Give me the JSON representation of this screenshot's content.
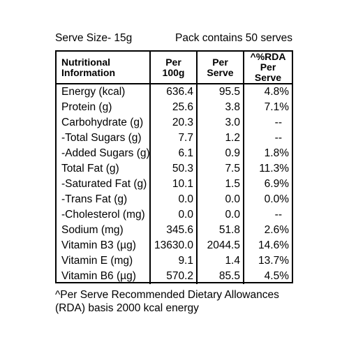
{
  "serve_size": "Serve Size- 15g",
  "pack_contains": "Pack contains 50 serves",
  "table": {
    "headers": {
      "nutrient_line1": "Nutritional",
      "nutrient_line2": "Information",
      "per100_line1": "Per",
      "per100_line2": "100g",
      "perserve_line1": "Per",
      "perserve_line2": "Serve",
      "rda_line1": "^%RDA",
      "rda_line2": "Per Serve"
    },
    "rows": [
      {
        "name": "Energy (kcal)",
        "per100": "636.4",
        "serve": "95.5",
        "rda": "4.8%"
      },
      {
        "name": "Protein (g)",
        "per100": "25.6",
        "serve": "3.8",
        "rda": "7.1%"
      },
      {
        "name": "Carbohydrate (g)",
        "per100": "20.3",
        "serve": "3.0",
        "rda": "--"
      },
      {
        "name": "-Total Sugars (g)",
        "per100": "7.7",
        "serve": "1.2",
        "rda": "--"
      },
      {
        "name": "-Added Sugars (g)",
        "per100": "6.1",
        "serve": "0.9",
        "rda": "1.8%"
      },
      {
        "name": "Total Fat (g)",
        "per100": "50.3",
        "serve": "7.5",
        "rda": "11.3%"
      },
      {
        "name": "-Saturated Fat (g)",
        "per100": "10.1",
        "serve": "1.5",
        "rda": "6.9%"
      },
      {
        "name": "-Trans Fat (g)",
        "per100": "0.0",
        "serve": "0.0",
        "rda": "0.0%"
      },
      {
        "name": "-Cholesterol (mg)",
        "per100": "0.0",
        "serve": "0.0",
        "rda": "--"
      },
      {
        "name": "Sodium (mg)",
        "per100": "345.6",
        "serve": "51.8",
        "rda": "2.6%"
      },
      {
        "name": "Vitamin B3 (µg)",
        "per100": "13630.0",
        "serve": "2044.5",
        "rda": "14.6%"
      },
      {
        "name": "Vitamin E (mg)",
        "per100": "9.1",
        "serve": "1.4",
        "rda": "13.7%"
      },
      {
        "name": "Vitamin B6 (µg)",
        "per100": "570.2",
        "serve": "85.5",
        "rda": "4.5%"
      }
    ]
  },
  "footnote_line1": "^Per Serve Recommended Dietary Allowances",
  "footnote_line2": "(RDA) basis 2000 kcal energy"
}
